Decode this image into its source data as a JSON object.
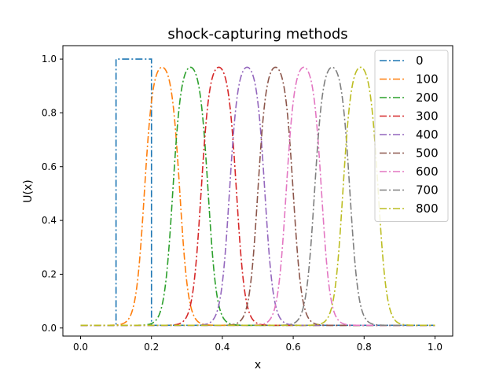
{
  "chart_data": {
    "type": "line",
    "title": "shock-capturing methods",
    "xlabel": "x",
    "ylabel": "U(x)",
    "xlim": [
      -0.05,
      1.05
    ],
    "ylim": [
      -0.03,
      1.05
    ],
    "xticks": [
      "0.0",
      "0.2",
      "0.4",
      "0.6",
      "0.8",
      "1.0"
    ],
    "yticks": [
      "0.0",
      "0.2",
      "0.4",
      "0.6",
      "0.8",
      "1.0"
    ],
    "grid": false,
    "legend_position": "top-right",
    "line_style": "dash-dot",
    "series": [
      {
        "name": "0",
        "color": "#1f77b4",
        "left_edge": 0.1,
        "right_edge": 0.2,
        "baseline": 0.01,
        "peak": 1.0,
        "shape": "step"
      },
      {
        "name": "100",
        "color": "#ff7f0e",
        "left_edge": 0.18,
        "right_edge": 0.28,
        "baseline": 0.01,
        "peak": 1.0,
        "shape": "smooth"
      },
      {
        "name": "200",
        "color": "#2ca02c",
        "left_edge": 0.26,
        "right_edge": 0.36,
        "baseline": 0.01,
        "peak": 1.0,
        "shape": "smooth"
      },
      {
        "name": "300",
        "color": "#d62728",
        "left_edge": 0.34,
        "right_edge": 0.44,
        "baseline": 0.01,
        "peak": 1.0,
        "shape": "smooth"
      },
      {
        "name": "400",
        "color": "#9467bd",
        "left_edge": 0.42,
        "right_edge": 0.52,
        "baseline": 0.01,
        "peak": 1.0,
        "shape": "smooth"
      },
      {
        "name": "500",
        "color": "#8c564b",
        "left_edge": 0.5,
        "right_edge": 0.6,
        "baseline": 0.01,
        "peak": 1.0,
        "shape": "smooth"
      },
      {
        "name": "600",
        "color": "#e377c2",
        "left_edge": 0.58,
        "right_edge": 0.68,
        "baseline": 0.01,
        "peak": 1.0,
        "shape": "smooth"
      },
      {
        "name": "700",
        "color": "#7f7f7f",
        "left_edge": 0.66,
        "right_edge": 0.76,
        "baseline": 0.01,
        "peak": 1.0,
        "shape": "smooth"
      },
      {
        "name": "800",
        "color": "#bcbd22",
        "left_edge": 0.74,
        "right_edge": 0.84,
        "baseline": 0.01,
        "peak": 1.0,
        "shape": "smooth"
      }
    ]
  }
}
